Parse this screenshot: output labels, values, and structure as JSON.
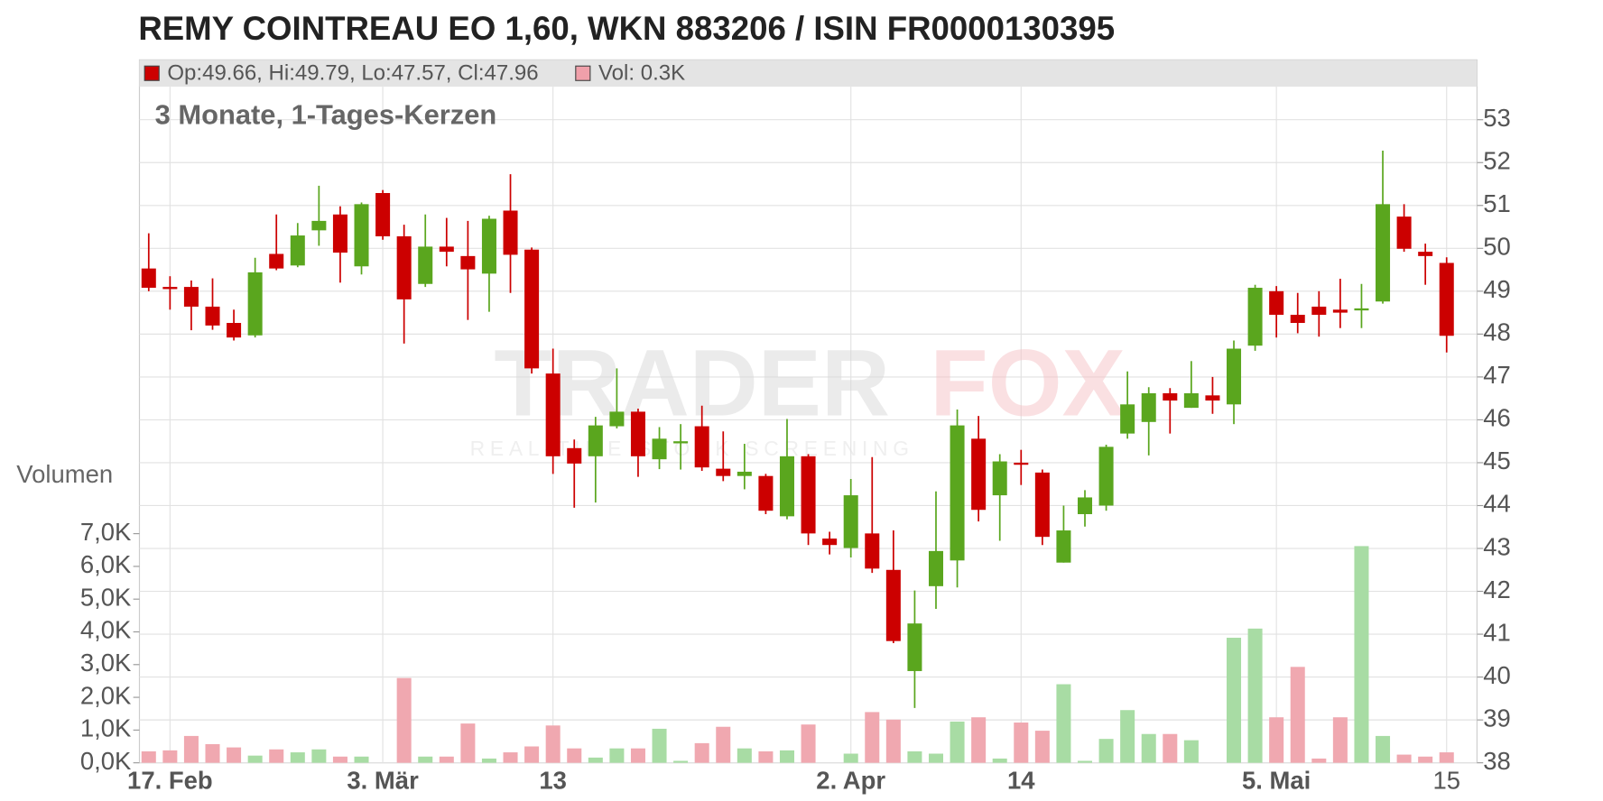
{
  "chart_data": {
    "type": "candlestick",
    "title": "REMY COINTREAU EO 1,60, WKN 883206 / ISIN FR0000130395",
    "subtitle": "3 Monate, 1-Tages-Kerzen",
    "volume_axis_label": "Volumen",
    "watermark": [
      "TRADER",
      "FOX"
    ],
    "watermark_sub": "REAL-TIME STOCK SCREENING",
    "legend": [
      {
        "name": "Op:49.66, Hi:49.79, Lo:47.57, Cl:47.96",
        "color": "#cc0000"
      },
      {
        "name": "Vol: 0.3K",
        "color": "#f0a0aa"
      }
    ],
    "up_color": "#5aa61e",
    "down_color": "#cc0000",
    "volume_up_color": "#a8dca4",
    "volume_down_color": "#f0a8b0",
    "categories": [
      null,
      "17. Feb",
      null,
      null,
      null,
      null,
      null,
      null,
      null,
      null,
      null,
      "3. Mär",
      null,
      null,
      null,
      null,
      null,
      null,
      null,
      "13",
      null,
      null,
      null,
      null,
      null,
      null,
      null,
      null,
      null,
      null,
      null,
      null,
      null,
      "2. Apr",
      null,
      null,
      null,
      null,
      null,
      null,
      null,
      "14",
      null,
      null,
      null,
      null,
      null,
      null,
      null,
      null,
      null,
      null,
      null,
      "5. Mai",
      null,
      null,
      null,
      null,
      null,
      null,
      null,
      "15"
    ],
    "open": [
      49.53,
      49.1,
      49.1,
      48.64,
      48.26,
      47.97,
      49.87,
      49.6,
      50.42,
      50.79,
      49.58,
      51.29,
      50.28,
      49.17,
      50.04,
      49.82,
      49.41,
      50.88,
      49.97,
      47.08,
      45.34,
      45.15,
      45.85,
      46.19,
      45.08,
      45.47,
      45.85,
      44.86,
      44.69,
      44.69,
      43.75,
      45.15,
      43.23,
      43.01,
      43.35,
      42.5,
      40.14,
      42.12,
      42.72,
      45.56,
      44.24,
      45.0,
      44.77,
      42.67,
      43.8,
      44.0,
      45.68,
      45.95,
      46.62,
      46.28,
      46.57,
      46.36,
      47.73,
      49.0,
      48.45,
      48.64,
      48.57,
      48.57,
      48.76,
      50.74,
      49.92,
      49.66
    ],
    "high": [
      50.35,
      49.35,
      49.25,
      49.3,
      48.57,
      49.78,
      50.79,
      50.59,
      51.46,
      50.98,
      51.07,
      51.36,
      50.55,
      50.79,
      50.71,
      50.64,
      50.76,
      51.73,
      50.02,
      47.66,
      45.54,
      46.07,
      47.2,
      46.26,
      45.83,
      45.9,
      46.33,
      45.73,
      45.44,
      44.74,
      46.02,
      45.2,
      43.39,
      44.62,
      45.13,
      43.42,
      42.02,
      44.33,
      46.24,
      46.09,
      45.2,
      45.3,
      44.84,
      44.0,
      44.36,
      45.42,
      47.13,
      46.76,
      46.74,
      47.37,
      47.0,
      47.85,
      49.15,
      49.12,
      48.96,
      49.0,
      49.29,
      49.17,
      52.28,
      51.03,
      50.11,
      49.79
    ],
    "low": [
      49.0,
      48.57,
      48.09,
      48.1,
      47.85,
      47.92,
      49.49,
      49.56,
      50.06,
      49.2,
      49.39,
      50.2,
      47.78,
      49.1,
      49.58,
      48.33,
      48.52,
      48.96,
      47.08,
      44.74,
      43.95,
      44.07,
      45.8,
      44.67,
      44.85,
      44.84,
      44.81,
      44.57,
      44.38,
      43.8,
      43.68,
      43.08,
      42.86,
      42.79,
      42.43,
      40.79,
      39.28,
      41.59,
      42.09,
      43.63,
      43.18,
      44.48,
      43.08,
      42.67,
      43.51,
      43.88,
      45.56,
      45.17,
      45.68,
      46.28,
      46.14,
      45.9,
      47.61,
      47.92,
      48.02,
      47.94,
      48.14,
      48.14,
      48.71,
      49.92,
      49.15,
      47.57
    ],
    "close": [
      49.08,
      49.05,
      48.64,
      48.2,
      47.92,
      49.44,
      49.53,
      50.3,
      50.64,
      49.9,
      51.03,
      50.28,
      48.81,
      50.04,
      49.92,
      49.51,
      50.69,
      49.85,
      47.2,
      45.15,
      44.98,
      45.87,
      46.19,
      45.15,
      45.56,
      45.5,
      44.89,
      44.69,
      44.79,
      43.88,
      45.15,
      43.35,
      43.08,
      44.24,
      42.53,
      40.84,
      41.25,
      42.94,
      45.87,
      43.9,
      45.03,
      44.96,
      43.27,
      43.42,
      44.19,
      45.37,
      46.36,
      46.62,
      46.45,
      46.62,
      46.45,
      47.66,
      49.08,
      48.45,
      48.26,
      48.45,
      48.5,
      48.6,
      51.03,
      49.99,
      49.82,
      47.96
    ],
    "volume": [
      0.35,
      0.38,
      0.82,
      0.57,
      0.47,
      0.22,
      0.41,
      0.32,
      0.41,
      0.19,
      0.19,
      0,
      2.59,
      0.19,
      0.19,
      1.2,
      0.13,
      0.32,
      0.5,
      1.14,
      0.44,
      0.16,
      0.44,
      0.44,
      1.04,
      0.06,
      0.6,
      1.1,
      0.44,
      0.35,
      0.38,
      1.17,
      0,
      0.28,
      1.55,
      1.32,
      0.35,
      0.28,
      1.26,
      1.39,
      0.13,
      1.23,
      0.98,
      2.4,
      0.06,
      0.73,
      1.61,
      0.88,
      0.88,
      0.69,
      0,
      3.82,
      4.1,
      1.39,
      2.93,
      0.13,
      1.39,
      6.62,
      0.82,
      0.25,
      0.19,
      0.32
    ],
    "ylim": [
      38,
      53.77
    ],
    "yticks": [
      38,
      39,
      40,
      41,
      42,
      43,
      44,
      45,
      46,
      47,
      48,
      49,
      50,
      51,
      52,
      53
    ],
    "y2lim": [
      0,
      7
    ],
    "y2ticks": [
      {
        "value": 0,
        "label": "0,0K"
      },
      {
        "value": 1,
        "label": "1,0K"
      },
      {
        "value": 2,
        "label": "2,0K"
      },
      {
        "value": 3,
        "label": "3,0K"
      },
      {
        "value": 4,
        "label": "4,0K"
      },
      {
        "value": 5,
        "label": "5,0K"
      },
      {
        "value": 6,
        "label": "6,0K"
      },
      {
        "value": 7,
        "label": "7,0K"
      }
    ],
    "grid": true
  }
}
